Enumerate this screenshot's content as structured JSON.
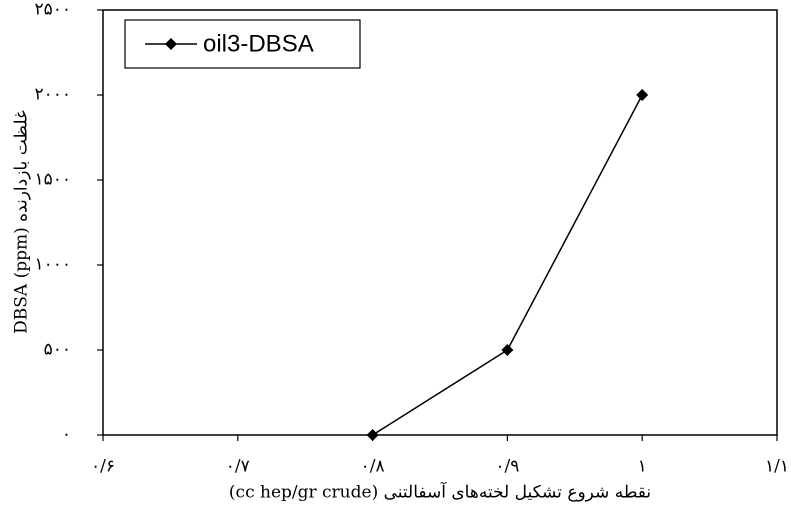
{
  "chart_data": {
    "type": "line",
    "xlabel": "نقطه شروع تشکیل لخته‌های آسفالتنی (cc hep/gr crude)",
    "ylabel": "غلظت بازدارنده DBSA (ppm)",
    "x": [
      0.8,
      0.9,
      1.0
    ],
    "series": [
      {
        "name": "oil3-DBSA",
        "color": "#000000",
        "marker": "diamond",
        "values": [
          0,
          500,
          2000
        ]
      }
    ],
    "xlim": [
      0.6,
      1.1
    ],
    "xticks": [
      {
        "value": 0.6,
        "label": "۰/۶"
      },
      {
        "value": 0.7,
        "label": "۰/۷"
      },
      {
        "value": 0.8,
        "label": "۰/۸"
      },
      {
        "value": 0.9,
        "label": "۰/۹"
      },
      {
        "value": 1,
        "label": "۱"
      },
      {
        "value": 1.1,
        "label": "۱/۱"
      }
    ],
    "ylim": [
      0,
      2500
    ],
    "yticks": [
      {
        "value": 0,
        "label": "۰"
      },
      {
        "value": 500,
        "label": "۵۰۰"
      },
      {
        "value": 1000,
        "label": "۱۰۰۰"
      },
      {
        "value": 1500,
        "label": "۱۵۰۰"
      },
      {
        "value": 2000,
        "label": "۲۰۰۰"
      },
      {
        "value": 2500,
        "label": "۲۵۰۰"
      }
    ],
    "grid": false,
    "legend": "upper left"
  }
}
